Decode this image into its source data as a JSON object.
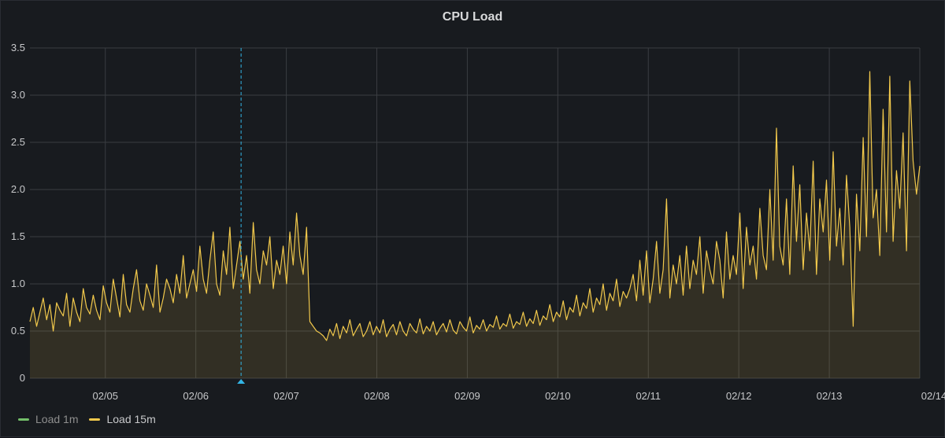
{
  "panel": {
    "title": "CPU Load"
  },
  "colors": {
    "load1m": "#73bf69",
    "load15m": "#f2c94c",
    "annotation": "#33b5e5",
    "grid": "#3a3d42"
  },
  "legend": [
    {
      "label": "Load 1m",
      "color": "#73bf69",
      "dim": true
    },
    {
      "label": "Load 15m",
      "color": "#f2c94c",
      "dim": false
    }
  ],
  "chart_data": {
    "type": "line",
    "title": "CPU Load",
    "xlabel": "",
    "ylabel": "",
    "xlim": [
      "02/04 04:00",
      "02/14"
    ],
    "ylim": [
      0,
      3.5
    ],
    "yticks": [
      "0",
      "0.5",
      "1.0",
      "1.5",
      "2.0",
      "2.5",
      "3.0",
      "3.5"
    ],
    "xticks": [
      "02/05",
      "02/06",
      "02/07",
      "02/08",
      "02/09",
      "02/10",
      "02/11",
      "02/12",
      "02/13",
      "02/14"
    ],
    "grid": true,
    "legend_position": "bottom-left",
    "annotation": {
      "time": "02/06 12:00"
    },
    "series": [
      {
        "name": "Load 15m",
        "x_start": "02/04 04:00",
        "x_end": "02/14",
        "values": [
          0.6,
          0.75,
          0.55,
          0.7,
          0.85,
          0.62,
          0.78,
          0.5,
          0.8,
          0.72,
          0.66,
          0.9,
          0.55,
          0.85,
          0.7,
          0.6,
          0.95,
          0.75,
          0.68,
          0.88,
          0.72,
          0.62,
          0.98,
          0.8,
          0.7,
          1.05,
          0.85,
          0.65,
          1.1,
          0.78,
          0.7,
          0.95,
          1.15,
          0.82,
          0.72,
          1.0,
          0.88,
          0.75,
          1.2,
          0.7,
          0.85,
          1.05,
          0.95,
          0.8,
          1.1,
          0.9,
          1.3,
          0.85,
          1.0,
          1.15,
          0.92,
          1.4,
          1.05,
          0.9,
          1.25,
          1.55,
          1.0,
          0.88,
          1.35,
          1.1,
          1.6,
          0.95,
          1.2,
          1.45,
          1.05,
          1.3,
          0.9,
          1.65,
          1.15,
          1.0,
          1.35,
          1.2,
          1.5,
          0.95,
          1.25,
          1.1,
          1.4,
          1.0,
          1.55,
          1.2,
          1.75,
          1.3,
          1.1,
          1.6,
          0.6,
          0.55,
          0.5,
          0.48,
          0.45,
          0.4,
          0.52,
          0.45,
          0.58,
          0.42,
          0.55,
          0.48,
          0.62,
          0.45,
          0.52,
          0.58,
          0.44,
          0.5,
          0.6,
          0.46,
          0.55,
          0.48,
          0.62,
          0.44,
          0.52,
          0.57,
          0.46,
          0.6,
          0.5,
          0.45,
          0.58,
          0.52,
          0.48,
          0.63,
          0.47,
          0.55,
          0.5,
          0.6,
          0.46,
          0.53,
          0.58,
          0.49,
          0.62,
          0.51,
          0.47,
          0.6,
          0.54,
          0.5,
          0.65,
          0.48,
          0.56,
          0.52,
          0.62,
          0.5,
          0.57,
          0.54,
          0.66,
          0.52,
          0.58,
          0.55,
          0.68,
          0.53,
          0.6,
          0.57,
          0.7,
          0.55,
          0.63,
          0.58,
          0.72,
          0.56,
          0.66,
          0.62,
          0.78,
          0.6,
          0.7,
          0.65,
          0.82,
          0.62,
          0.75,
          0.7,
          0.88,
          0.66,
          0.8,
          0.74,
          0.95,
          0.7,
          0.85,
          0.78,
          1.0,
          0.72,
          0.9,
          0.82,
          1.05,
          0.76,
          0.92,
          0.85,
          0.95,
          1.1,
          0.82,
          1.25,
          0.88,
          1.35,
          0.8,
          1.05,
          1.45,
          0.9,
          1.15,
          1.9,
          0.85,
          1.2,
          1.0,
          1.3,
          0.88,
          1.4,
          0.95,
          1.25,
          1.1,
          1.5,
          0.9,
          1.35,
          1.15,
          1.0,
          1.45,
          1.25,
          0.85,
          1.55,
          1.05,
          1.3,
          1.1,
          1.75,
          0.95,
          1.6,
          1.2,
          1.4,
          1.05,
          1.8,
          1.3,
          1.15,
          2.0,
          1.25,
          2.65,
          1.4,
          1.2,
          1.9,
          1.1,
          2.25,
          1.45,
          2.05,
          1.15,
          1.75,
          1.35,
          2.3,
          1.1,
          1.9,
          1.55,
          2.1,
          1.25,
          2.4,
          1.4,
          1.8,
          1.2,
          2.15,
          1.6,
          0.55,
          1.95,
          1.35,
          2.55,
          1.5,
          3.25,
          1.7,
          2.0,
          1.3,
          2.85,
          1.55,
          3.2,
          1.45,
          2.2,
          1.8,
          2.6,
          1.35,
          3.15,
          2.3,
          1.95,
          2.25
        ]
      }
    ]
  }
}
